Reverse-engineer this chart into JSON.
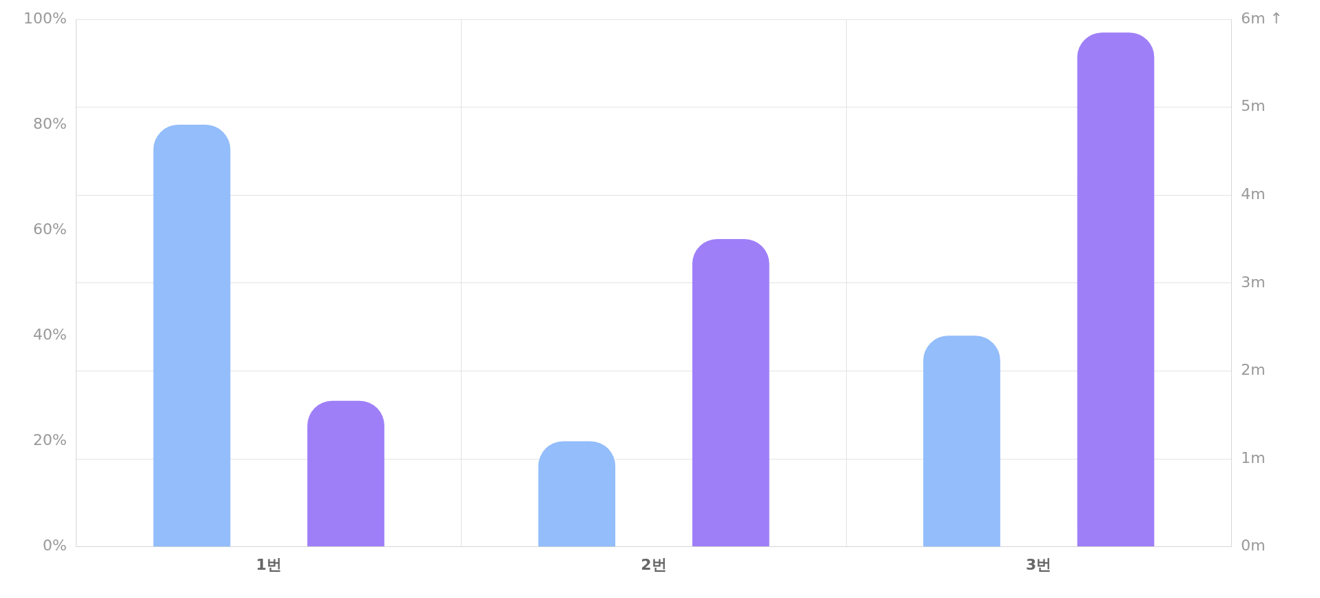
{
  "chart_data": {
    "type": "bar",
    "categories": [
      "1번",
      "2번",
      "3번"
    ],
    "series": [
      {
        "color": "#93bdfb",
        "values": [
          80,
          20,
          40
        ]
      },
      {
        "color": "#9e7ff8",
        "values": [
          1.66,
          3.5,
          5.85
        ],
        "axis": "y2"
      }
    ],
    "ylim": [
      0,
      100
    ],
    "yticks": [
      {
        "value": 0,
        "label": "0%"
      },
      {
        "value": 20,
        "label": "20%"
      },
      {
        "value": 40,
        "label": "40%"
      },
      {
        "value": 60,
        "label": "60%"
      },
      {
        "value": 80,
        "label": "80%"
      },
      {
        "value": 100,
        "label": "100%"
      }
    ],
    "y2lim": [
      0,
      6
    ],
    "y2ticks": [
      {
        "value": 0,
        "label": "0m"
      },
      {
        "value": 1,
        "label": "1m"
      },
      {
        "value": 2,
        "label": "2m"
      },
      {
        "value": 3,
        "label": "3m"
      },
      {
        "value": 4,
        "label": "4m"
      },
      {
        "value": 5,
        "label": "5m"
      },
      {
        "value": 6,
        "label": "6m ↑"
      }
    ],
    "grid": true,
    "legend": false
  }
}
